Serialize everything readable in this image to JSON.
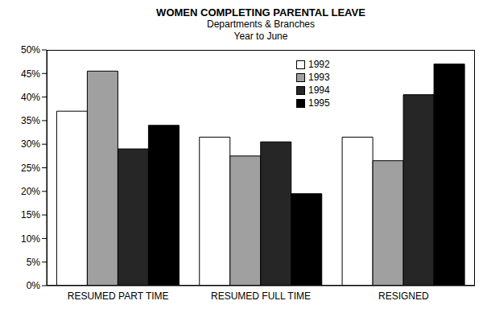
{
  "chart_data": {
    "type": "bar",
    "title": "WOMEN COMPLETING PARENTAL LEAVE",
    "subtitle": [
      "Departments & Branches",
      "Year to June"
    ],
    "categories": [
      "RESUMED PART TIME",
      "RESUMED FULL TIME",
      "RESIGNED"
    ],
    "series": [
      {
        "name": "1992",
        "color": "#ffffff",
        "values": [
          37,
          31.5,
          31.5
        ]
      },
      {
        "name": "1993",
        "color": "#a0a0a0",
        "values": [
          45.5,
          27.5,
          26.5
        ]
      },
      {
        "name": "1994",
        "color": "#262626",
        "values": [
          29,
          30.5,
          40.5
        ]
      },
      {
        "name": "1995",
        "color": "#000000",
        "values": [
          34,
          19.5,
          47
        ]
      }
    ],
    "ylim": [
      0,
      50
    ],
    "yticks": [
      {
        "value": 0,
        "label": "0%"
      },
      {
        "value": 5,
        "label": "5%"
      },
      {
        "value": 10,
        "label": "10%"
      },
      {
        "value": 15,
        "label": "15%"
      },
      {
        "value": 20,
        "label": "20%"
      },
      {
        "value": 25,
        "label": "25%"
      },
      {
        "value": 30,
        "label": "30%"
      },
      {
        "value": 35,
        "label": "35%"
      },
      {
        "value": 40,
        "label": "40%"
      },
      {
        "value": 45,
        "label": "45%"
      },
      {
        "value": 50,
        "label": "50%"
      }
    ],
    "grid": false,
    "legend": "upper right"
  }
}
